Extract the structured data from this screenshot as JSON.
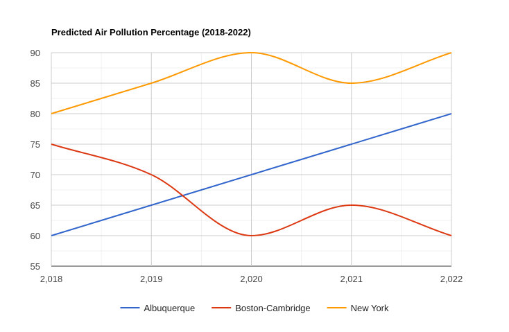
{
  "chart_data": {
    "type": "line",
    "title": "Predicted Air Pollution Percentage (2018-2022)",
    "xlabel": "",
    "ylabel": "",
    "x": [
      2018,
      2019,
      2020,
      2021,
      2022
    ],
    "x_tick_labels": [
      "2,018",
      "2,019",
      "2,020",
      "2,021",
      "2,022"
    ],
    "y_ticks": [
      55,
      60,
      65,
      70,
      75,
      80,
      85,
      90
    ],
    "ylim": [
      55,
      90
    ],
    "xlim": [
      2018,
      2022
    ],
    "grid": true,
    "legend_position": "bottom",
    "smooth": true,
    "series": [
      {
        "name": "Albuquerque",
        "color": "#3366cc",
        "values": [
          60,
          65,
          70,
          75,
          80
        ]
      },
      {
        "name": "Boston-Cambridge",
        "color": "#dc3912",
        "values": [
          75,
          70,
          60,
          65,
          60
        ]
      },
      {
        "name": "New York",
        "color": "#ff9900",
        "values": [
          80,
          85,
          90,
          85,
          90
        ]
      }
    ]
  }
}
